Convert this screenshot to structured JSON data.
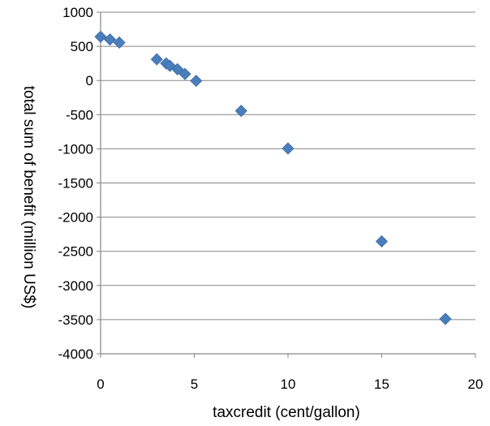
{
  "chart_data": {
    "type": "scatter",
    "xlabel": "taxcredit (cent/gallon)",
    "ylabel": "total sum of benefit (million US$)",
    "xlim": [
      0,
      20
    ],
    "ylim": [
      -4000,
      1000
    ],
    "xticks": [
      0,
      5,
      10,
      15,
      20
    ],
    "yticks": [
      1000,
      500,
      0,
      -500,
      -1000,
      -1500,
      -2000,
      -2500,
      -3000,
      -3500,
      -4000
    ],
    "grid": "horizontal",
    "marker_color": "#4a7ebb",
    "marker": "diamond",
    "points": [
      {
        "x": 0,
        "y": 640
      },
      {
        "x": 0.5,
        "y": 600
      },
      {
        "x": 1,
        "y": 555
      },
      {
        "x": 3,
        "y": 310
      },
      {
        "x": 3.5,
        "y": 250
      },
      {
        "x": 3.7,
        "y": 215
      },
      {
        "x": 4.1,
        "y": 165
      },
      {
        "x": 4.5,
        "y": 95
      },
      {
        "x": 5.1,
        "y": -5
      },
      {
        "x": 7.5,
        "y": -445
      },
      {
        "x": 10,
        "y": -995
      },
      {
        "x": 15,
        "y": -2355
      },
      {
        "x": 18.4,
        "y": -3490
      }
    ]
  }
}
